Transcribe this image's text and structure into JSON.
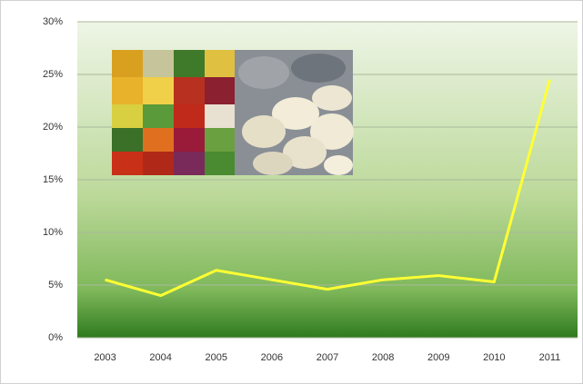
{
  "chart_data": {
    "type": "line",
    "categories": [
      "2003",
      "2004",
      "2005",
      "2006",
      "2007",
      "2008",
      "2009",
      "2010",
      "2011"
    ],
    "values": [
      5.5,
      4.0,
      6.4,
      5.5,
      4.6,
      5.5,
      5.9,
      5.3,
      24.5
    ],
    "color": "#ffff33",
    "ylim": [
      0,
      30
    ],
    "yticks": [
      {
        "value": 0,
        "label": "0%"
      },
      {
        "value": 5,
        "label": "5%"
      },
      {
        "value": 10,
        "label": "10%"
      },
      {
        "value": 15,
        "label": "15%"
      },
      {
        "value": 20,
        "label": "20%"
      },
      {
        "value": 25,
        "label": "25%"
      },
      {
        "value": 30,
        "label": "30%"
      }
    ],
    "grid": true
  }
}
